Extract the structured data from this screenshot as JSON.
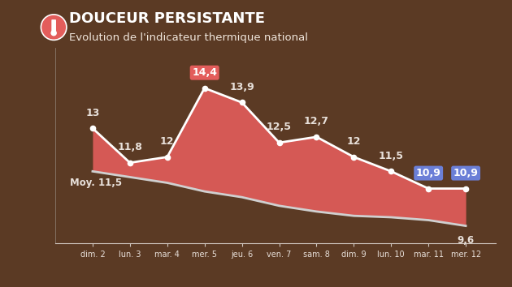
{
  "chart_data": {
    "type": "area",
    "title": "DOUCEUR PERSISTANTE",
    "subtitle": "Evolution de l'indicateur thermique national",
    "categories": [
      "dim. 2",
      "lun. 3",
      "mar. 4",
      "mer. 5",
      "jeu. 6",
      "ven. 7",
      "sam. 8",
      "dim. 9",
      "lun. 10",
      "mar. 11",
      "mer. 12"
    ],
    "series": [
      {
        "color": "#e35d5b",
        "marker": "o",
        "values": [
          13,
          11.8,
          12,
          14.4,
          13.9,
          12.5,
          12.7,
          12,
          11.5,
          10.9,
          10.9
        ],
        "value_labels": [
          "13",
          "11,8",
          "12",
          "14,4",
          "13,9",
          "12,5",
          "12,7",
          "12",
          "11,5",
          "10,9",
          "10,9"
        ]
      },
      {
        "color": "#d0d0d0",
        "values": [
          11.5,
          11.3,
          11.1,
          10.8,
          10.6,
          10.3,
          10.1,
          9.95,
          9.9,
          9.8,
          9.6
        ],
        "value_labels": [
          "Moy. 11,5",
          null,
          null,
          null,
          null,
          null,
          null,
          null,
          null,
          null,
          "9,6"
        ]
      }
    ],
    "ylim": [
      9,
      15.8
    ],
    "yticks": [],
    "tick_labels": "x",
    "grid": false,
    "data_labels": true
  }
}
